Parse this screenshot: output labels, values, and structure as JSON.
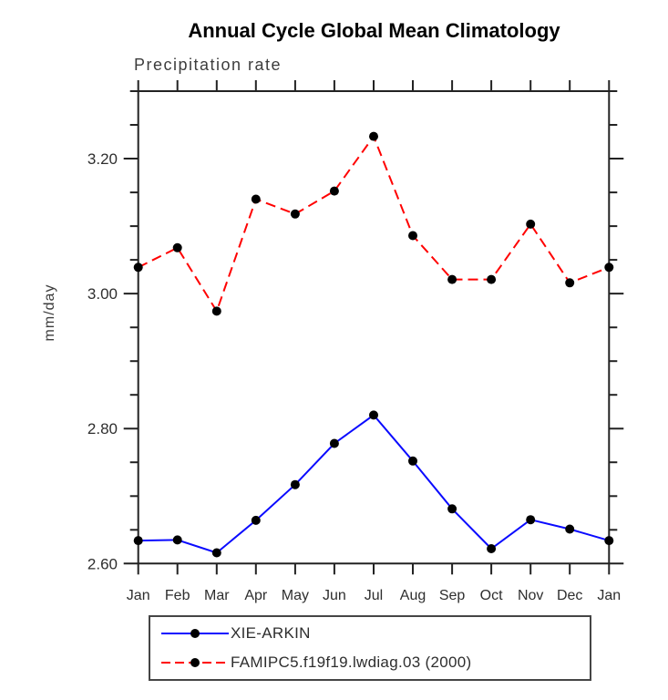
{
  "chart_data": {
    "type": "line",
    "title": "Annual Cycle Global Mean Climatology",
    "subtitle": "Precipitation rate",
    "ylabel": "mm/day",
    "xlabel": "",
    "x_categories": [
      "Jan",
      "Feb",
      "Mar",
      "Apr",
      "May",
      "Jun",
      "Jul",
      "Aug",
      "Sep",
      "Oct",
      "Nov",
      "Dec",
      "Jan"
    ],
    "ylim": [
      2.6,
      3.3
    ],
    "yticks_major": [
      2.6,
      2.8,
      3.0,
      3.2
    ],
    "ytick_labels": [
      "2.60",
      "2.80",
      "3.00",
      "3.20"
    ],
    "ytick_minor_step": 0.05,
    "grid": false,
    "legend_position": "bottom",
    "axis_color": "#222222",
    "series": [
      {
        "name": "XIE-ARKIN",
        "color": "#0a0aff",
        "style": "solid",
        "marker": "filled-circle",
        "marker_color": "#000000",
        "values": [
          2.634,
          2.635,
          2.616,
          2.664,
          2.717,
          2.778,
          2.82,
          2.752,
          2.681,
          2.622,
          2.665,
          2.651,
          2.634
        ]
      },
      {
        "name": "FAMIPC5.f19f19.lwdiag.03 (2000)",
        "color": "#ff0000",
        "style": "dashed",
        "marker": "filled-circle",
        "marker_color": "#000000",
        "values": [
          3.039,
          3.068,
          2.974,
          3.14,
          3.118,
          3.152,
          3.233,
          3.086,
          3.021,
          3.021,
          3.103,
          3.016,
          3.039
        ]
      }
    ]
  }
}
